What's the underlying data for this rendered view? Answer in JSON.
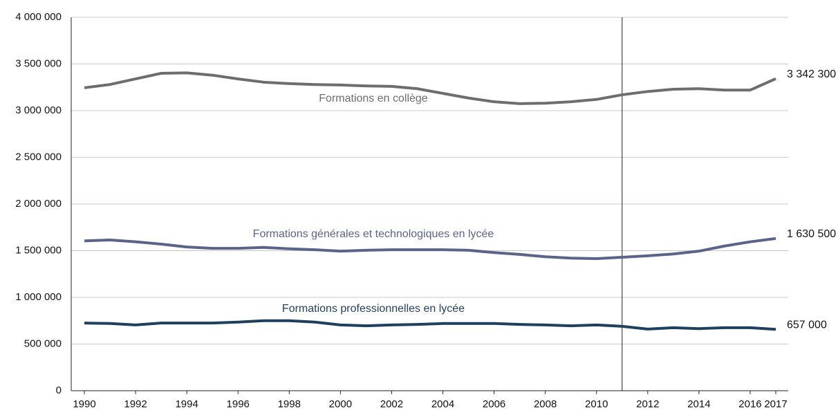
{
  "chart_data": {
    "type": "line",
    "x": [
      1990,
      1991,
      1992,
      1993,
      1994,
      1995,
      1996,
      1997,
      1998,
      1999,
      2000,
      2001,
      2002,
      2003,
      2004,
      2005,
      2006,
      2007,
      2008,
      2009,
      2010,
      2011,
      2012,
      2013,
      2014,
      2015,
      2016,
      2017
    ],
    "series": [
      {
        "name": "Formations en collège",
        "color": "#6d6d6d",
        "values": [
          3245000,
          3280000,
          3340000,
          3400000,
          3405000,
          3380000,
          3340000,
          3305000,
          3290000,
          3280000,
          3275000,
          3265000,
          3260000,
          3235000,
          3185000,
          3135000,
          3095000,
          3075000,
          3080000,
          3095000,
          3120000,
          3170000,
          3205000,
          3230000,
          3235000,
          3220000,
          3220000,
          3342300
        ],
        "value_labels": [
          null,
          null,
          null,
          null,
          null,
          null,
          null,
          null,
          null,
          null,
          null,
          null,
          null,
          null,
          null,
          null,
          null,
          null,
          null,
          null,
          null,
          null,
          null,
          null,
          null,
          null,
          null,
          "3 342 300"
        ]
      },
      {
        "name": "Formations générales et technologiques en lycée",
        "color": "#5a6488",
        "values": [
          1605000,
          1615000,
          1595000,
          1570000,
          1540000,
          1525000,
          1525000,
          1535000,
          1520000,
          1510000,
          1495000,
          1505000,
          1510000,
          1510000,
          1510000,
          1505000,
          1480000,
          1460000,
          1435000,
          1420000,
          1415000,
          1430000,
          1445000,
          1465000,
          1495000,
          1550000,
          1595000,
          1630500
        ],
        "value_labels": [
          null,
          null,
          null,
          null,
          null,
          null,
          null,
          null,
          null,
          null,
          null,
          null,
          null,
          null,
          null,
          null,
          null,
          null,
          null,
          null,
          null,
          null,
          null,
          null,
          null,
          null,
          null,
          "1 630 500"
        ]
      },
      {
        "name": "Formations professionnelles en lycée",
        "color": "#1f3f5e",
        "values": [
          725000,
          720000,
          705000,
          725000,
          725000,
          725000,
          735000,
          750000,
          750000,
          735000,
          705000,
          695000,
          705000,
          710000,
          720000,
          720000,
          720000,
          710000,
          705000,
          695000,
          705000,
          690000,
          660000,
          675000,
          665000,
          675000,
          675000,
          657000
        ],
        "value_labels": [
          null,
          null,
          null,
          null,
          null,
          null,
          null,
          null,
          null,
          null,
          null,
          null,
          null,
          null,
          null,
          null,
          null,
          null,
          null,
          null,
          null,
          null,
          null,
          null,
          null,
          null,
          null,
          "657 000"
        ]
      }
    ],
    "xlim": [
      1990,
      2017
    ],
    "xticks": [
      1990,
      1992,
      1994,
      1996,
      1998,
      2000,
      2002,
      2004,
      2006,
      2008,
      2010,
      2012,
      2014,
      2016,
      2017
    ],
    "ylim": [
      0,
      4000000
    ],
    "yticks": [
      0,
      {
        "value": 500000,
        "label": "500 000"
      },
      {
        "value": 1000000,
        "label": "1 000 000"
      },
      {
        "value": 1500000,
        "label": "1 500 000"
      },
      {
        "value": 2000000,
        "label": "2 000 000"
      },
      {
        "value": 2500000,
        "label": "2 500 000"
      },
      {
        "value": 3000000,
        "label": "3 000 000"
      },
      {
        "value": 3500000,
        "label": "3 500 000"
      },
      {
        "value": 4000000,
        "label": "4 000 000"
      }
    ],
    "reference_line_x": 2011,
    "grid": true
  }
}
